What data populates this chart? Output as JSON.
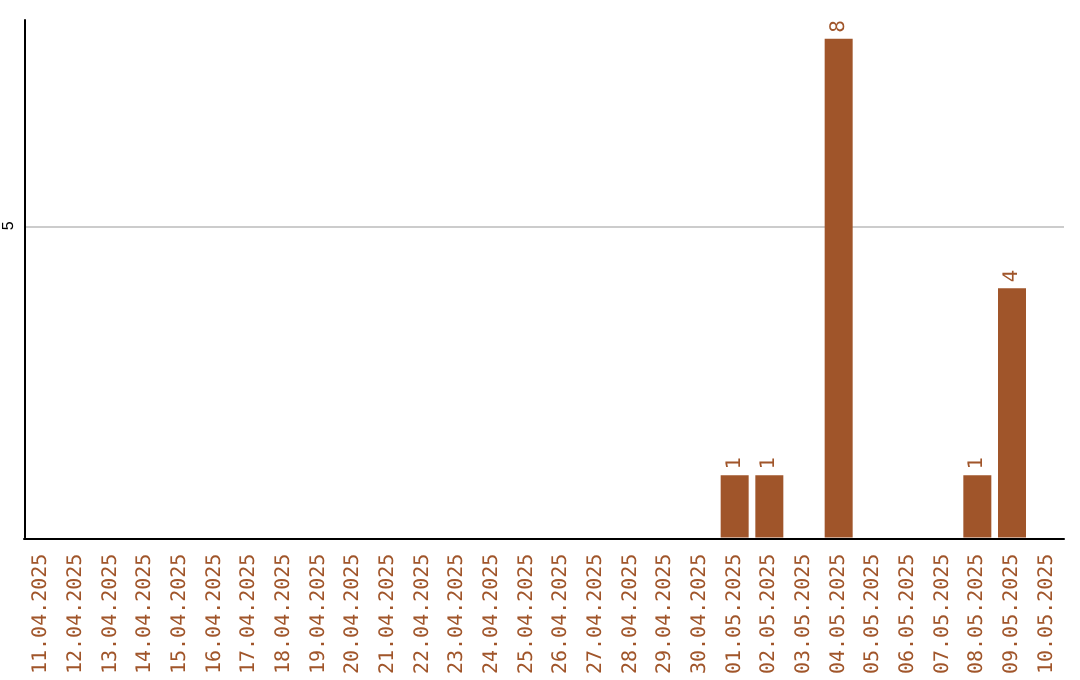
{
  "chart_data": {
    "type": "bar",
    "categories": [
      "11.04.2025",
      "12.04.2025",
      "13.04.2025",
      "14.04.2025",
      "15.04.2025",
      "16.04.2025",
      "17.04.2025",
      "18.04.2025",
      "19.04.2025",
      "20.04.2025",
      "21.04.2025",
      "22.04.2025",
      "23.04.2025",
      "24.04.2025",
      "25.04.2025",
      "26.04.2025",
      "27.04.2025",
      "28.04.2025",
      "29.04.2025",
      "30.04.2025",
      "01.05.2025",
      "02.05.2025",
      "03.05.2025",
      "04.05.2025",
      "05.05.2025",
      "06.05.2025",
      "07.05.2025",
      "08.05.2025",
      "09.05.2025",
      "10.05.2025"
    ],
    "values": [
      null,
      null,
      null,
      null,
      null,
      null,
      null,
      null,
      null,
      null,
      null,
      null,
      null,
      null,
      null,
      null,
      null,
      null,
      null,
      null,
      1,
      1,
      null,
      8,
      null,
      null,
      null,
      1,
      4,
      null
    ],
    "color": "#a0552a",
    "ylim": [
      0,
      8.3
    ],
    "yticks": [
      {
        "value": 0,
        "label": null
      },
      5
    ],
    "grid": "y",
    "data_labels": true
  }
}
